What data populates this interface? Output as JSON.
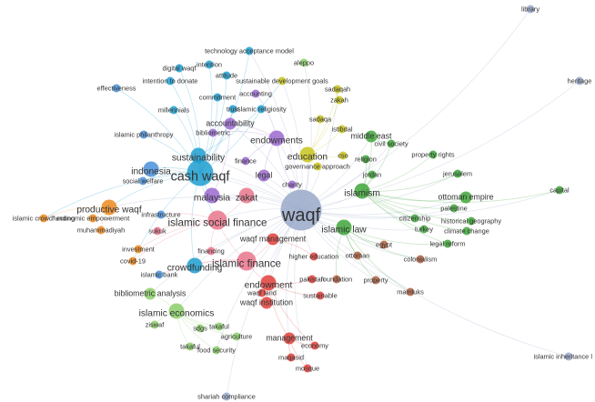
{
  "palette": {
    "blue": "#4a90d9",
    "cyan": "#1f9fd0",
    "purple": "#9b6ad0",
    "red": "#e0403a",
    "green": "#3fa63a",
    "orange": "#ef8a1e",
    "yellow": "#c9c41f",
    "lightgreen": "#8ccf6a",
    "pink": "#e9768c",
    "gray": "#9aa9c9",
    "teal": "#3aa69a",
    "brown": "#b06040"
  },
  "nodes": [
    {
      "id": "library",
      "label": "library",
      "color": "gray",
      "w": 1
    },
    {
      "id": "heritage",
      "label": "heritage",
      "color": "gray",
      "w": 1
    },
    {
      "id": "technology_acceptance",
      "label": "technology acceptance model",
      "color": "cyan",
      "w": 1
    },
    {
      "id": "aleppo",
      "label": "aleppo",
      "color": "lightgreen",
      "w": 1
    },
    {
      "id": "intention",
      "label": "intention",
      "color": "cyan",
      "w": 1
    },
    {
      "id": "digital_waqf",
      "label": "digital waqf",
      "color": "cyan",
      "w": 1
    },
    {
      "id": "attitude",
      "label": "attitude",
      "color": "cyan",
      "w": 1
    },
    {
      "id": "intention_to_donate",
      "label": "intention to donate",
      "color": "cyan",
      "w": 1
    },
    {
      "id": "sdg",
      "label": "sustainable development goals",
      "color": "yellow",
      "w": 1
    },
    {
      "id": "effectiveness",
      "label": "effectiveness",
      "color": "blue",
      "w": 1
    },
    {
      "id": "sadaqah",
      "label": "sadaqah",
      "color": "yellow",
      "w": 1
    },
    {
      "id": "commitment",
      "label": "commitment",
      "color": "cyan",
      "w": 1
    },
    {
      "id": "accounting",
      "label": "accounting",
      "color": "purple",
      "w": 1
    },
    {
      "id": "zakah_top",
      "label": "zakah",
      "color": "yellow",
      "w": 1
    },
    {
      "id": "millennials",
      "label": "millennials",
      "color": "cyan",
      "w": 1
    },
    {
      "id": "trust",
      "label": "trust",
      "color": "cyan",
      "w": 1
    },
    {
      "id": "islamic_religiosity",
      "label": "islamic religiosity",
      "color": "cyan",
      "w": 1
    },
    {
      "id": "accountability",
      "label": "accountability",
      "color": "purple",
      "w": 2
    },
    {
      "id": "sadaqa",
      "label": "sadaqa",
      "color": "yellow",
      "w": 1
    },
    {
      "id": "bibliometric",
      "label": "bibliometric",
      "color": "purple",
      "w": 1
    },
    {
      "id": "islamic_philanthropy",
      "label": "islamic philanthropy",
      "color": "blue",
      "w": 1
    },
    {
      "id": "istibdal",
      "label": "istibdal",
      "color": "yellow",
      "w": 1
    },
    {
      "id": "middle_east",
      "label": "middle east",
      "color": "green",
      "w": 2
    },
    {
      "id": "endowments",
      "label": "endowments",
      "color": "purple",
      "w": 3
    },
    {
      "id": "civil_society",
      "label": "civil society",
      "color": "green",
      "w": 1
    },
    {
      "id": "sustainability",
      "label": "sustainability",
      "color": "cyan",
      "w": 3
    },
    {
      "id": "education",
      "label": "education",
      "color": "yellow",
      "w": 3
    },
    {
      "id": "cso",
      "label": "cso",
      "color": "yellow",
      "w": 1
    },
    {
      "id": "religion",
      "label": "religion",
      "color": "green",
      "w": 1
    },
    {
      "id": "property_rights",
      "label": "property rights",
      "color": "green",
      "w": 1
    },
    {
      "id": "governance_approach",
      "label": "governance approach",
      "color": "yellow",
      "w": 1
    },
    {
      "id": "indonesia",
      "label": "indonesia",
      "color": "blue",
      "w": 3
    },
    {
      "id": "cash_waqf",
      "label": "cash waqf",
      "color": "cyan",
      "w": 6
    },
    {
      "id": "finance",
      "label": "finance",
      "color": "purple",
      "w": 1
    },
    {
      "id": "jordan",
      "label": "jordan",
      "color": "green",
      "w": 1
    },
    {
      "id": "jerusalem",
      "label": "jerusalem",
      "color": "green",
      "w": 1
    },
    {
      "id": "legal",
      "label": "legal",
      "color": "purple",
      "w": 2
    },
    {
      "id": "social_welfare",
      "label": "social welfare",
      "color": "blue",
      "w": 1
    },
    {
      "id": "capital",
      "label": "capital",
      "color": "green",
      "w": 1
    },
    {
      "id": "islamism",
      "label": "islamism",
      "color": "green",
      "w": 3
    },
    {
      "id": "ottoman_empire",
      "label": "ottoman empire",
      "color": "green",
      "w": 2
    },
    {
      "id": "charity",
      "label": "charity",
      "color": "purple",
      "w": 1
    },
    {
      "id": "malaysia",
      "label": "malaysia",
      "color": "purple",
      "w": 3
    },
    {
      "id": "zakat",
      "label": "zakat",
      "color": "pink",
      "w": 3
    },
    {
      "id": "productive_waqf",
      "label": "productive waqf",
      "color": "orange",
      "w": 3
    },
    {
      "id": "infrastructure",
      "label": "infrastructure",
      "color": "blue",
      "w": 1
    },
    {
      "id": "palestine",
      "label": "palestine",
      "color": "green",
      "w": 1
    },
    {
      "id": "waqf",
      "label": "waqf",
      "color": "gray",
      "w": 10
    },
    {
      "id": "islamic_crowdfunding",
      "label": "islamic crowdfunding",
      "color": "orange",
      "w": 1
    },
    {
      "id": "economic_empowerment",
      "label": "economic empowerment",
      "color": "orange",
      "w": 1
    },
    {
      "id": "islamic_social_finance",
      "label": "islamic social finance",
      "color": "pink",
      "w": 4
    },
    {
      "id": "islamic_law",
      "label": "islamic law",
      "color": "green",
      "w": 3
    },
    {
      "id": "citizenship",
      "label": "citizenship",
      "color": "green",
      "w": 1
    },
    {
      "id": "historical_geography",
      "label": "historical geography",
      "color": "green",
      "w": 1
    },
    {
      "id": "muhammadiyah",
      "label": "muhammadiyah",
      "color": "orange",
      "w": 1
    },
    {
      "id": "turkey",
      "label": "turkey",
      "color": "green",
      "w": 1
    },
    {
      "id": "climate_change",
      "label": "climate change",
      "color": "green",
      "w": 1
    },
    {
      "id": "sukuk",
      "label": "sukuk",
      "color": "pink",
      "w": 1
    },
    {
      "id": "waqf_management",
      "label": "waqf management",
      "color": "red",
      "w": 2
    },
    {
      "id": "egypt",
      "label": "egypt",
      "color": "brown",
      "w": 1
    },
    {
      "id": "legal_reform",
      "label": "legal reform",
      "color": "green",
      "w": 1
    },
    {
      "id": "investment",
      "label": "investment",
      "color": "orange",
      "w": 1
    },
    {
      "id": "financing",
      "label": "financing",
      "color": "pink",
      "w": 1
    },
    {
      "id": "ottoman",
      "label": "ottoman",
      "color": "brown",
      "w": 1
    },
    {
      "id": "covid19",
      "label": "covid-19",
      "color": "orange",
      "w": 1
    },
    {
      "id": "islamic_finance",
      "label": "islamic finance",
      "color": "pink",
      "w": 4
    },
    {
      "id": "higher_education",
      "label": "higher education",
      "color": "red",
      "w": 1
    },
    {
      "id": "colonialism",
      "label": "colonialism",
      "color": "brown",
      "w": 1
    },
    {
      "id": "crowdfunding",
      "label": "crowdfunding",
      "color": "cyan",
      "w": 3
    },
    {
      "id": "islamic_bank",
      "label": "islamic bank",
      "color": "blue",
      "w": 1
    },
    {
      "id": "pakistan",
      "label": "pakistan",
      "color": "red",
      "w": 1
    },
    {
      "id": "foundation",
      "label": "foundation",
      "color": "brown",
      "w": 1
    },
    {
      "id": "property",
      "label": "property",
      "color": "brown",
      "w": 1
    },
    {
      "id": "endowment",
      "label": "endowment",
      "color": "red",
      "w": 3
    },
    {
      "id": "bibliometric_analysis",
      "label": "bibliometric analysis",
      "color": "lightgreen",
      "w": 2
    },
    {
      "id": "waqf_land",
      "label": "waqf land",
      "color": "red",
      "w": 1
    },
    {
      "id": "sustainable",
      "label": "sustainable",
      "color": "red",
      "w": 1
    },
    {
      "id": "mamluks",
      "label": "mamluks",
      "color": "brown",
      "w": 1
    },
    {
      "id": "waqf_institution",
      "label": "waqf institution",
      "color": "red",
      "w": 2
    },
    {
      "id": "islamic_economics",
      "label": "islamic economics",
      "color": "lightgreen",
      "w": 3
    },
    {
      "id": "ziswaf",
      "label": "ziswaf",
      "color": "lightgreen",
      "w": 1
    },
    {
      "id": "takaful",
      "label": "takaful",
      "color": "lightgreen",
      "w": 1
    },
    {
      "id": "sdgs",
      "label": "sdgs",
      "color": "lightgreen",
      "w": 1
    },
    {
      "id": "agriculture",
      "label": "agriculture",
      "color": "lightgreen",
      "w": 1
    },
    {
      "id": "management",
      "label": "management",
      "color": "red",
      "w": 2
    },
    {
      "id": "economy",
      "label": "economy",
      "color": "red",
      "w": 1
    },
    {
      "id": "takaful2",
      "label": "takaful",
      "color": "lightgreen",
      "w": 1
    },
    {
      "id": "food_security",
      "label": "food security",
      "color": "lightgreen",
      "w": 1
    },
    {
      "id": "maqasid",
      "label": "maqasid",
      "color": "red",
      "w": 1
    },
    {
      "id": "mosque",
      "label": "mosque",
      "color": "red",
      "w": 1
    },
    {
      "id": "islamic_inheritance",
      "label": "islamic inheritance l",
      "color": "gray",
      "w": 1
    },
    {
      "id": "shariah_compliance",
      "label": "shariah compliance",
      "color": "gray",
      "w": 1
    }
  ],
  "edges": [
    [
      "waqf",
      "cash_waqf"
    ],
    [
      "waqf",
      "islamic_social_finance"
    ],
    [
      "waqf",
      "islamic_finance"
    ],
    [
      "waqf",
      "endowments"
    ],
    [
      "waqf",
      "islamism"
    ],
    [
      "waqf",
      "islamic_law"
    ],
    [
      "waqf",
      "malaysia"
    ],
    [
      "waqf",
      "zakat"
    ],
    [
      "waqf",
      "indonesia"
    ],
    [
      "waqf",
      "education"
    ],
    [
      "waqf",
      "sustainability"
    ],
    [
      "waqf",
      "waqf_management"
    ],
    [
      "waqf",
      "endowment"
    ],
    [
      "waqf",
      "crowdfunding"
    ],
    [
      "waqf",
      "middle_east"
    ],
    [
      "waqf",
      "ottoman_empire"
    ],
    [
      "waqf",
      "library"
    ],
    [
      "waqf",
      "heritage"
    ],
    [
      "waqf",
      "islamic_inheritance"
    ],
    [
      "waqf",
      "shariah_compliance"
    ],
    [
      "waqf",
      "aleppo"
    ],
    [
      "waqf",
      "mosque"
    ],
    [
      "waqf",
      "management"
    ],
    [
      "waqf",
      "egypt"
    ],
    [
      "waqf",
      "colonialism"
    ],
    [
      "waqf",
      "productive_waqf"
    ],
    [
      "waqf",
      "islamic_economics"
    ],
    [
      "waqf",
      "bibliometric_analysis"
    ],
    [
      "waqf",
      "accountability"
    ],
    [
      "waqf",
      "sdg"
    ],
    [
      "waqf",
      "legal"
    ],
    [
      "waqf",
      "higher_education"
    ],
    [
      "waqf",
      "waqf_institution"
    ],
    [
      "waqf",
      "property"
    ],
    [
      "waqf",
      "turkey"
    ],
    [
      "waqf",
      "jerusalem"
    ],
    [
      "waqf",
      "civil_society"
    ],
    [
      "waqf",
      "sadaqah"
    ],
    [
      "waqf",
      "capital"
    ],
    [
      "waqf",
      "palestine"
    ],
    [
      "waqf",
      "technology_acceptance"
    ],
    [
      "waqf",
      "mamluks"
    ],
    [
      "waqf",
      "food_security"
    ],
    [
      "cash_waqf",
      "indonesia"
    ],
    [
      "cash_waqf",
      "sustainability"
    ],
    [
      "cash_waqf",
      "malaysia"
    ],
    [
      "cash_waqf",
      "intention"
    ],
    [
      "cash_waqf",
      "digital_waqf"
    ],
    [
      "cash_waqf",
      "attitude"
    ],
    [
      "cash_waqf",
      "intention_to_donate"
    ],
    [
      "cash_waqf",
      "trust"
    ],
    [
      "cash_waqf",
      "millennials"
    ],
    [
      "cash_waqf",
      "effectiveness"
    ],
    [
      "cash_waqf",
      "islamic_philanthropy"
    ],
    [
      "cash_waqf",
      "social_welfare"
    ],
    [
      "cash_waqf",
      "productive_waqf"
    ],
    [
      "cash_waqf",
      "crowdfunding"
    ],
    [
      "cash_waqf",
      "islamic_social_finance"
    ],
    [
      "cash_waqf",
      "islamic_crowdfunding"
    ],
    [
      "cash_waqf",
      "covid19"
    ],
    [
      "cash_waqf",
      "commitment"
    ],
    [
      "cash_waqf",
      "islamic_religiosity"
    ],
    [
      "cash_waqf",
      "technology_acceptance"
    ],
    [
      "islamism",
      "middle_east"
    ],
    [
      "islamism",
      "ottoman_empire"
    ],
    [
      "islamism",
      "capital"
    ],
    [
      "islamism",
      "jordan"
    ],
    [
      "islamism",
      "religion"
    ],
    [
      "islamism",
      "civil_society"
    ],
    [
      "islamism",
      "palestine"
    ],
    [
      "islamism",
      "jerusalem"
    ],
    [
      "islamism",
      "turkey"
    ],
    [
      "islamism",
      "citizenship"
    ],
    [
      "islamism",
      "climate_change"
    ],
    [
      "islamism",
      "historical_geography"
    ],
    [
      "islamism",
      "property_rights"
    ],
    [
      "islamism",
      "legal_reform"
    ],
    [
      "islamic_social_finance",
      "zakat"
    ],
    [
      "islamic_social_finance",
      "sukuk"
    ],
    [
      "islamic_social_finance",
      "infrastructure"
    ],
    [
      "islamic_social_finance",
      "financing"
    ],
    [
      "islamic_social_finance",
      "investment"
    ],
    [
      "islamic_social_finance",
      "covid19"
    ],
    [
      "islamic_social_finance",
      "islamic_finance"
    ],
    [
      "islamic_finance",
      "crowdfunding"
    ],
    [
      "islamic_finance",
      "islamic_bank"
    ],
    [
      "islamic_finance",
      "endowment"
    ],
    [
      "islamic_finance",
      "waqf_management"
    ],
    [
      "endowment",
      "waqf_institution"
    ],
    [
      "endowment",
      "management"
    ],
    [
      "endowment",
      "economy"
    ],
    [
      "endowment",
      "pakistan"
    ],
    [
      "endowment",
      "sustainable"
    ],
    [
      "endowment",
      "waqf_land"
    ],
    [
      "management",
      "maqasid"
    ],
    [
      "management",
      "mosque"
    ],
    [
      "management",
      "economy"
    ],
    [
      "islamic_economics",
      "ziswaf"
    ],
    [
      "islamic_economics",
      "takaful"
    ],
    [
      "islamic_economics",
      "sdgs"
    ],
    [
      "islamic_economics",
      "agriculture"
    ],
    [
      "islamic_economics",
      "takaful2"
    ],
    [
      "islamic_economics",
      "food_security"
    ],
    [
      "islamic_economics",
      "bibliometric_analysis"
    ],
    [
      "education",
      "cso"
    ],
    [
      "education",
      "governance_approach"
    ],
    [
      "education",
      "istibdal"
    ],
    [
      "education",
      "sadaqa"
    ],
    [
      "education",
      "sadaqah"
    ],
    [
      "education",
      "zakah_top"
    ],
    [
      "endowments",
      "accountability"
    ],
    [
      "endowments",
      "bibliometric"
    ],
    [
      "endowments",
      "accounting"
    ],
    [
      "endowments",
      "finance"
    ],
    [
      "endowments",
      "legal"
    ],
    [
      "endowments",
      "charity"
    ],
    [
      "productive_waqf",
      "economic_empowerment"
    ],
    [
      "productive_waqf",
      "muhammadiyah"
    ],
    [
      "productive_waqf",
      "islamic_crowdfunding"
    ],
    [
      "islamic_law",
      "egypt"
    ],
    [
      "islamic_law",
      "ottoman"
    ],
    [
      "islamic_law",
      "colonialism"
    ],
    [
      "islamic_law",
      "legal_reform"
    ],
    [
      "islamic_law",
      "foundation"
    ],
    [
      "islamic_law",
      "property"
    ],
    [
      "islamic_law",
      "mamluks"
    ],
    [
      "sustainability",
      "sdg"
    ],
    [
      "indonesia",
      "social_welfare"
    ],
    [
      "malaysia",
      "zakat"
    ],
    [
      "malaysia",
      "accountability"
    ],
    [
      "middle_east",
      "civil_society"
    ],
    [
      "sadaqah",
      "zakah_top"
    ],
    [
      "higher_education",
      "waqf_management"
    ]
  ]
}
